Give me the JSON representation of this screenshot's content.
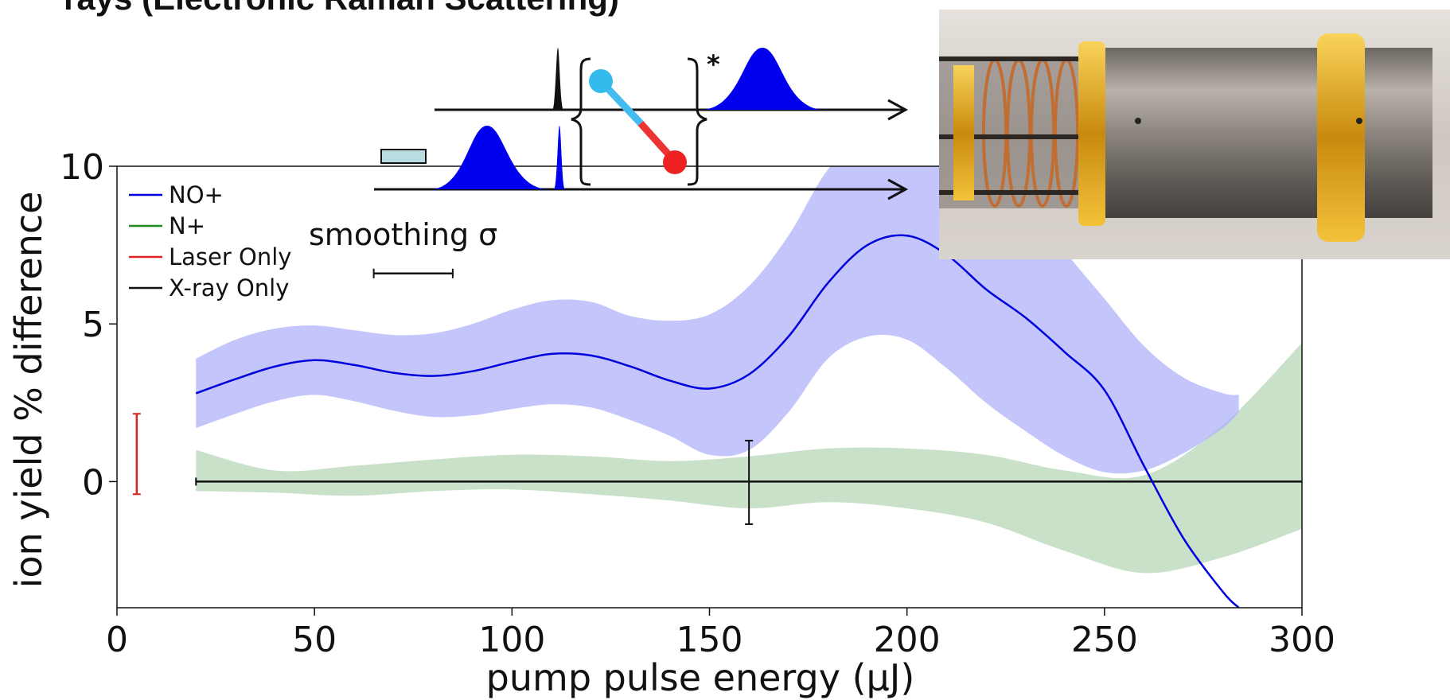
{
  "title": "rays (Electronic Raman Scattering)",
  "colors": {
    "no_plus": "#0000dd",
    "no_plus_band": "#b0b2f8",
    "n_plus": "#228b22",
    "n_plus_band": "#c9e1c9",
    "laser": "#dd2222",
    "xray": "#111111"
  },
  "chart_data": {
    "type": "line",
    "xlabel": "pump pulse energy (μJ)",
    "ylabel": "ion yield % difference",
    "xlim": [
      0,
      300
    ],
    "ylim": [
      -4,
      10
    ],
    "xticks": [
      0,
      50,
      100,
      150,
      200,
      250,
      300
    ],
    "yticks": [
      0,
      5,
      10
    ],
    "xtick_labels": [
      "0",
      "50",
      "100",
      "150",
      "200",
      "250",
      "300"
    ],
    "ytick_labels": [
      "0",
      "5",
      "10"
    ],
    "legend_position": "top-left",
    "grid": false,
    "series": [
      {
        "name": "NO+",
        "x": [
          20,
          30,
          40,
          50,
          60,
          70,
          80,
          90,
          100,
          110,
          120,
          130,
          140,
          150,
          160,
          170,
          180,
          190,
          200,
          210,
          220,
          230,
          240,
          250,
          260,
          270,
          280,
          284
        ],
        "y": [
          2.8,
          3.25,
          3.65,
          3.85,
          3.7,
          3.45,
          3.35,
          3.5,
          3.8,
          4.05,
          4.0,
          3.65,
          3.2,
          2.95,
          3.4,
          4.6,
          6.3,
          7.5,
          7.8,
          7.2,
          6.1,
          5.2,
          4.1,
          2.9,
          0.5,
          -1.8,
          -3.5,
          -4.0
        ],
        "band_upper": [
          3.9,
          4.5,
          4.85,
          4.95,
          4.8,
          4.65,
          4.7,
          5.0,
          5.45,
          5.75,
          5.7,
          5.25,
          5.1,
          5.3,
          6.2,
          7.8,
          9.9,
          11.0,
          11.0,
          11.0,
          10.5,
          9.0,
          7.3,
          5.8,
          4.3,
          3.3,
          2.8,
          2.75
        ],
        "band_lower": [
          1.7,
          2.15,
          2.55,
          2.75,
          2.55,
          2.25,
          2.05,
          2.1,
          2.3,
          2.45,
          2.35,
          1.95,
          1.45,
          0.85,
          1.0,
          2.2,
          3.9,
          4.6,
          4.5,
          3.6,
          2.5,
          1.6,
          0.8,
          0.3,
          0.35,
          0.9,
          1.7,
          2.2
        ]
      },
      {
        "name": "N+",
        "x": [
          20,
          40,
          60,
          80,
          100,
          120,
          140,
          160,
          180,
          200,
          220,
          240,
          260,
          280,
          300
        ],
        "y": [
          0.3,
          0.0,
          0.05,
          0.25,
          0.3,
          0.2,
          0.0,
          0.1,
          0.2,
          0.1,
          -0.2,
          -0.7,
          -1.25,
          -0.3,
          1.8
        ],
        "band_upper": [
          1.0,
          0.35,
          0.5,
          0.7,
          0.85,
          0.8,
          0.65,
          0.8,
          1.05,
          1.05,
          0.85,
          0.35,
          0.2,
          1.8,
          4.4
        ],
        "band_lower": [
          -0.3,
          -0.35,
          -0.45,
          -0.3,
          -0.25,
          -0.4,
          -0.6,
          -0.85,
          -0.65,
          -0.85,
          -1.3,
          -2.2,
          -2.9,
          -2.4,
          -1.5
        ]
      },
      {
        "name": "Laser Only",
        "x": [
          5
        ],
        "y": [
          0.8
        ],
        "err_upper": [
          2.15
        ],
        "err_lower": [
          -0.4
        ]
      },
      {
        "name": "X-ray Only",
        "x": [
          20,
          300
        ],
        "y": [
          0,
          0
        ],
        "error_bar": {
          "x": 160,
          "upper": 1.3,
          "lower": -1.35
        }
      }
    ],
    "annotations": [
      {
        "text": "smoothing σ",
        "bar_x": [
          65,
          85
        ],
        "bar_y": 6.6
      }
    ]
  },
  "inset_diagram": {
    "asterisk": "*"
  }
}
